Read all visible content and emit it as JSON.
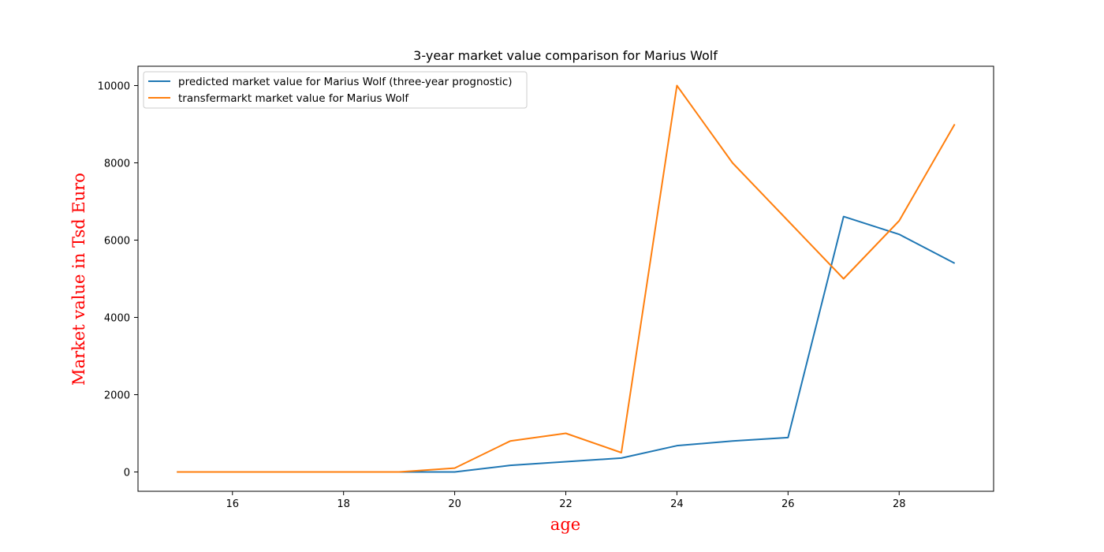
{
  "chart_data": {
    "type": "line",
    "title": "3-year market value comparison for Marius Wolf",
    "xlabel": "age",
    "ylabel": "Market value in Tsd Euro",
    "axis_label_color": "#ff0000",
    "xlim": [
      14.3,
      29.7
    ],
    "ylim": [
      -500,
      10500
    ],
    "xticks": [
      16,
      18,
      20,
      22,
      24,
      26,
      28
    ],
    "yticks": [
      0,
      2000,
      4000,
      6000,
      8000,
      10000
    ],
    "grid": false,
    "legend_position": "upper left",
    "x": [
      15,
      16,
      17,
      18,
      19,
      20,
      21,
      22,
      23,
      24,
      25,
      26,
      27,
      28,
      29
    ],
    "series": [
      {
        "name": "predicted market value for Marius Wolf (three-year prognostic)",
        "color": "#1f77b4",
        "values": [
          0,
          0,
          0,
          0,
          0,
          0,
          170,
          265,
          360,
          680,
          800,
          890,
          6610,
          6150,
          5400
        ]
      },
      {
        "name": "transfermarkt market value for Marius Wolf",
        "color": "#ff7f0e",
        "values": [
          0,
          0,
          0,
          0,
          0,
          100,
          800,
          1000,
          500,
          10000,
          8000,
          6500,
          5000,
          6500,
          9000
        ]
      }
    ]
  }
}
